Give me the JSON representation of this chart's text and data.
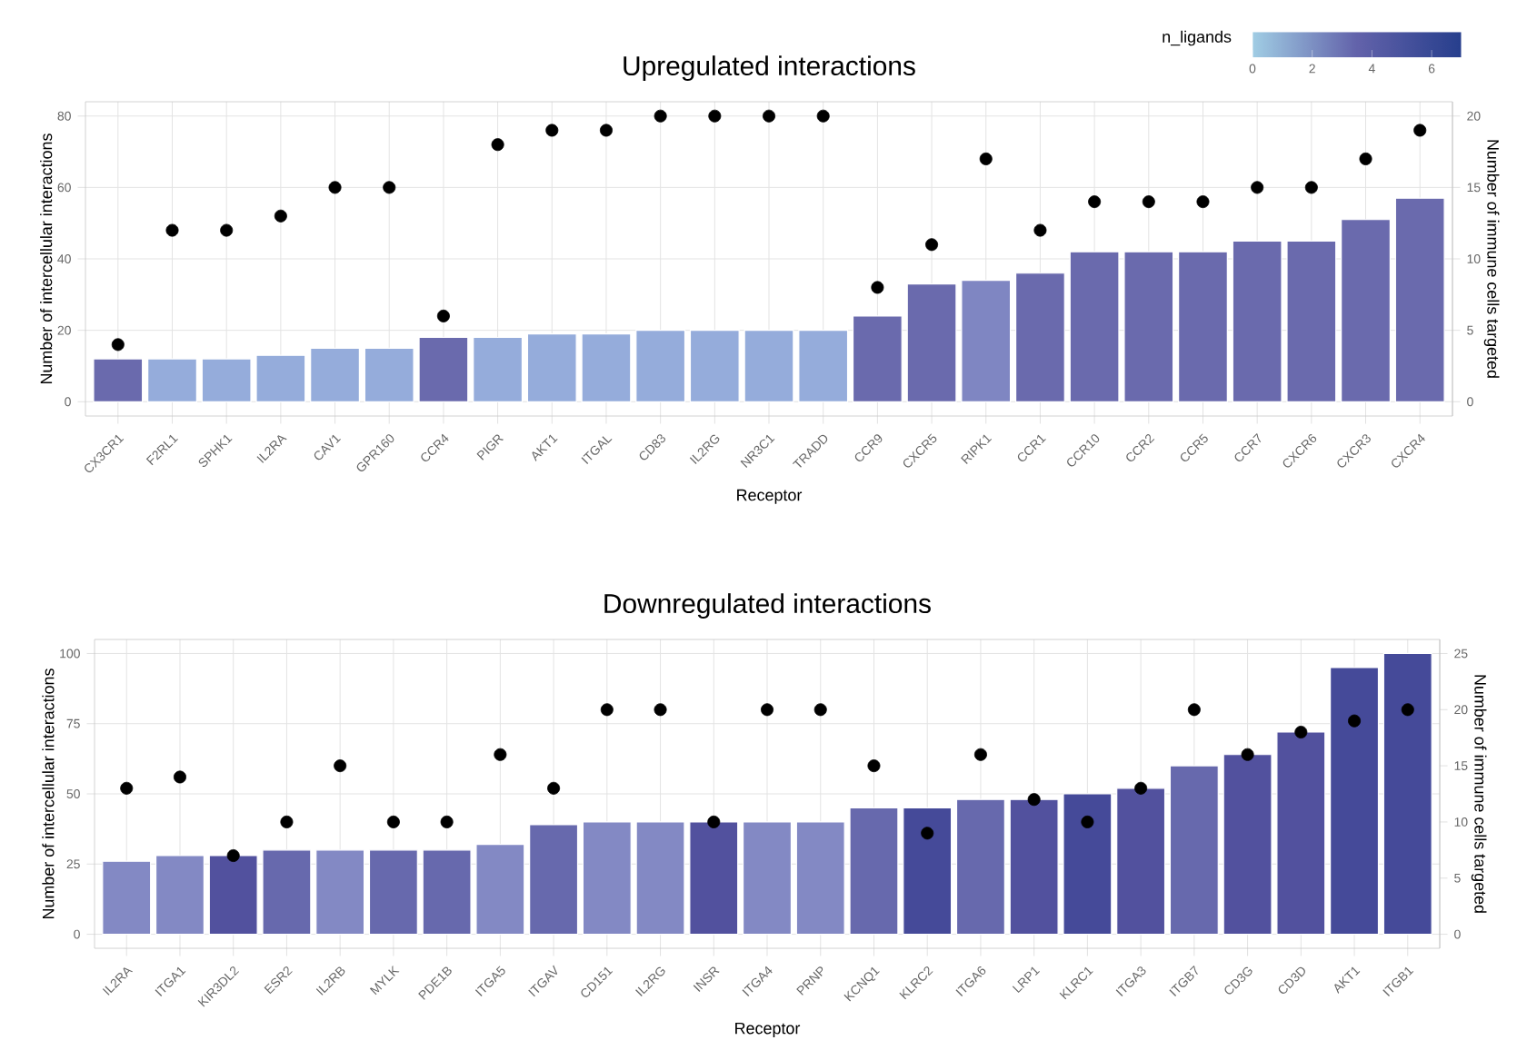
{
  "chart_data": [
    {
      "type": "bar",
      "title": "Upregulated interactions",
      "xlabel": "Receptor",
      "ylabel": "Number of intercellular interactions",
      "y2label": "Number of immune cells targeted",
      "clabel": "n_ligands",
      "clim": [
        0,
        7
      ],
      "cticks": [
        0,
        2,
        4,
        6
      ],
      "categories": [
        "CX3CR1",
        "F2RL1",
        "SPHK1",
        "IL2RA",
        "CAV1",
        "GPR160",
        "CCR4",
        "PIGR",
        "AKT1",
        "ITGAL",
        "CD83",
        "IL2RG",
        "NR3C1",
        "TRADD",
        "CCR9",
        "CXCR5",
        "RIPK1",
        "CCR1",
        "CCR10",
        "CCR2",
        "CCR5",
        "CCR7",
        "CXCR6",
        "CXCR3",
        "CXCR4"
      ],
      "series": [
        {
          "values": [
            12,
            12,
            12,
            13,
            15,
            15,
            18,
            18,
            19,
            19,
            20,
            20,
            20,
            20,
            24,
            33,
            34,
            36,
            42,
            42,
            42,
            45,
            45,
            51,
            57
          ],
          "colors": [
            "#6a6aad",
            "#95acdb",
            "#95acdb",
            "#95acdb",
            "#95acdb",
            "#95acdb",
            "#6a6aad",
            "#95acdb",
            "#95acdb",
            "#95acdb",
            "#95acdb",
            "#95acdb",
            "#95acdb",
            "#95acdb",
            "#6a6aad",
            "#6a6aad",
            "#7f86c2",
            "#6a6aad",
            "#6a6aad",
            "#6a6aad",
            "#6a6aad",
            "#6a6aad",
            "#6a6aad",
            "#6a6aad",
            "#6a6aad"
          ]
        },
        {
          "type": "scatter",
          "axis": "y2",
          "color": "#000000",
          "values": [
            4,
            12,
            12,
            13,
            15,
            15,
            6,
            18,
            19,
            19,
            20,
            20,
            20,
            20,
            8,
            11,
            17,
            12,
            14,
            14,
            14,
            15,
            15,
            17,
            19
          ]
        }
      ],
      "ylim": [
        -4,
        84
      ],
      "yticks": [
        0,
        20,
        40,
        60,
        80
      ],
      "y2lim": [
        -1,
        21
      ],
      "y2ticks": [
        0,
        5,
        10,
        15,
        20
      ],
      "grid": true
    },
    {
      "type": "bar",
      "title": "Downregulated interactions",
      "xlabel": "Receptor",
      "ylabel": "Number of intercellular interactions",
      "y2label": "Number of immune cells targeted",
      "categories": [
        "IL2RA",
        "ITGA1",
        "KIR3DL2",
        "ESR2",
        "IL2RB",
        "MYLK",
        "PDE1B",
        "ITGA5",
        "ITGAV",
        "CD151",
        "IL2RG",
        "INSR",
        "ITGA4",
        "PRNP",
        "KCNQ1",
        "KLRC2",
        "ITGA6",
        "LRP1",
        "KLRC1",
        "ITGA3",
        "ITGB7",
        "CD3G",
        "CD3D",
        "AKT1",
        "ITGB1"
      ],
      "series": [
        {
          "values": [
            26,
            28,
            28,
            30,
            30,
            30,
            30,
            32,
            39,
            40,
            40,
            40,
            40,
            40,
            45,
            45,
            48,
            48,
            50,
            52,
            60,
            64,
            72,
            95,
            100
          ],
          "colors": [
            "#8389c4",
            "#8389c4",
            "#52519e",
            "#6769ad",
            "#8389c4",
            "#6769ad",
            "#6769ad",
            "#8389c4",
            "#6769ad",
            "#8389c4",
            "#8389c4",
            "#52519e",
            "#8389c4",
            "#8389c4",
            "#6769ad",
            "#454a99",
            "#6769ad",
            "#52519e",
            "#454a99",
            "#52519e",
            "#6769ad",
            "#52519e",
            "#52519e",
            "#454a99",
            "#454a99"
          ]
        },
        {
          "type": "scatter",
          "axis": "y2",
          "color": "#000000",
          "values": [
            13,
            14,
            7,
            10,
            15,
            10,
            10,
            16,
            13,
            20,
            20,
            10,
            20,
            20,
            15,
            9,
            16,
            12,
            10,
            13,
            20,
            16,
            18,
            19,
            20
          ]
        }
      ],
      "ylim": [
        -5,
        105
      ],
      "yticks": [
        0,
        25,
        50,
        75,
        100
      ],
      "y2lim": [
        -1.25,
        26.25
      ],
      "y2ticks": [
        0,
        5,
        10,
        15,
        20,
        25
      ],
      "grid": true
    }
  ]
}
